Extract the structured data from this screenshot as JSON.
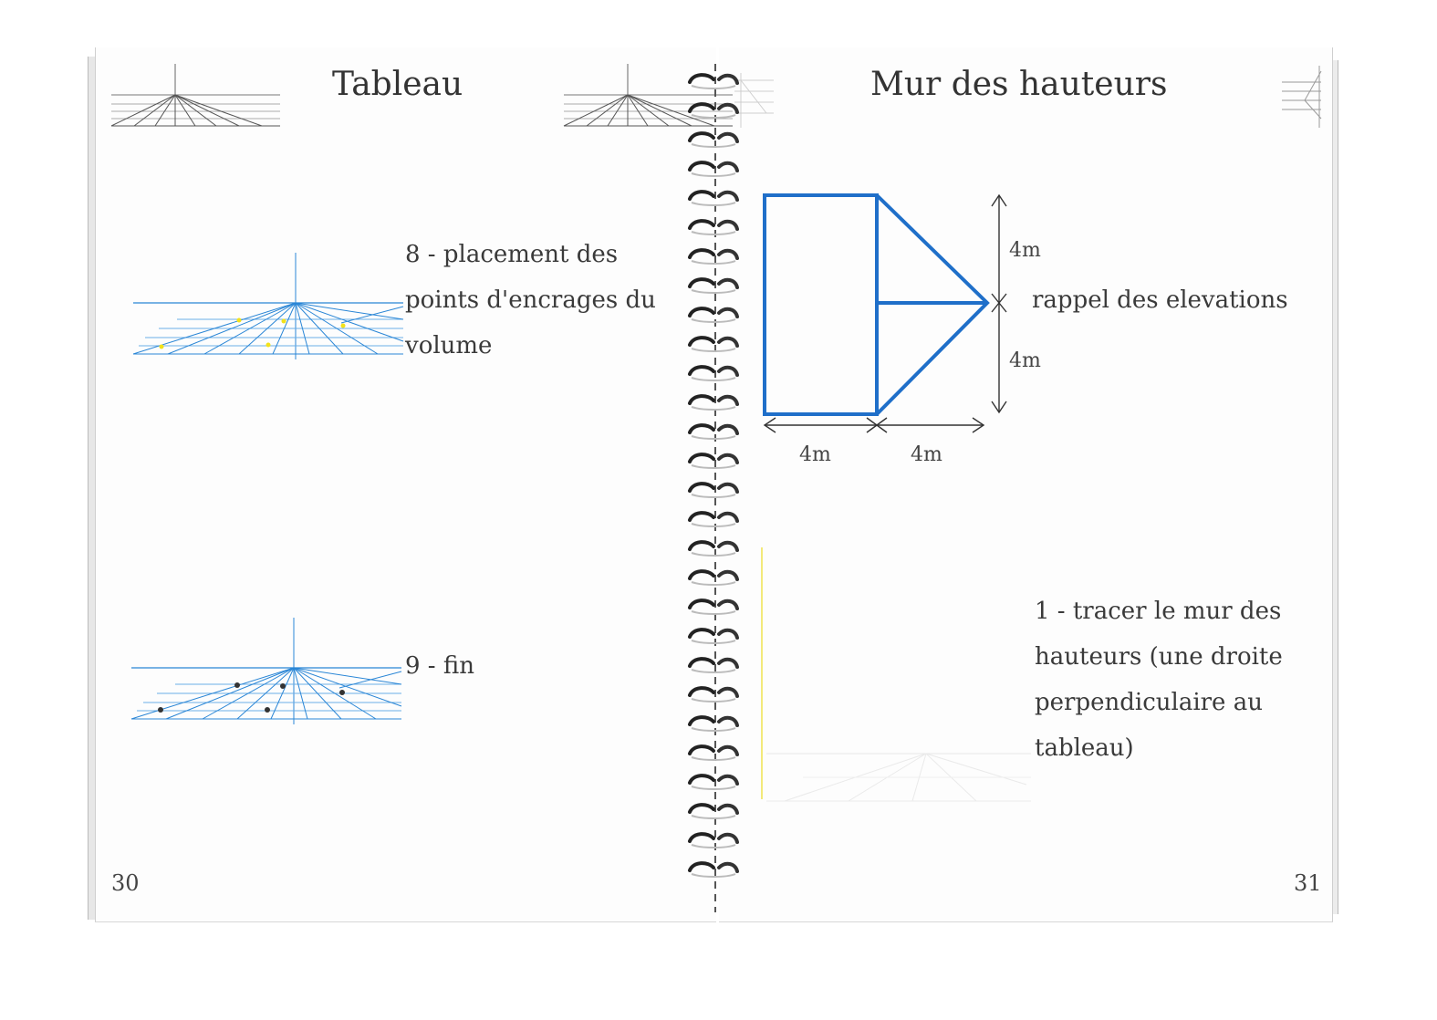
{
  "left_page": {
    "title": "Tableau",
    "step8": {
      "lines": [
        "8 - placement des",
        "points d'encrages du",
        "volume"
      ]
    },
    "step9": {
      "lines": [
        "9 - fin"
      ]
    },
    "page_number": "30"
  },
  "right_page": {
    "title": "Mur des hauteurs",
    "diagram": {
      "label_height_top": "4m",
      "label_height_bottom": "4m",
      "label_width_left": "4m",
      "label_width_right": "4m",
      "note": "rappel des elevations",
      "stroke_color": "#1f6fc9"
    },
    "step1": {
      "lines": [
        "1 - tracer le mur des",
        "hauteurs (une droite",
        "perpendiculaire au",
        "tableau)"
      ]
    },
    "page_number": "31"
  },
  "colors": {
    "grid_blue": "#2a86d6",
    "wall_blue": "#1f6fc9",
    "point_yellow": "#f2e21a",
    "point_dark": "#333333",
    "guide_yellow": "#f3e97a"
  }
}
